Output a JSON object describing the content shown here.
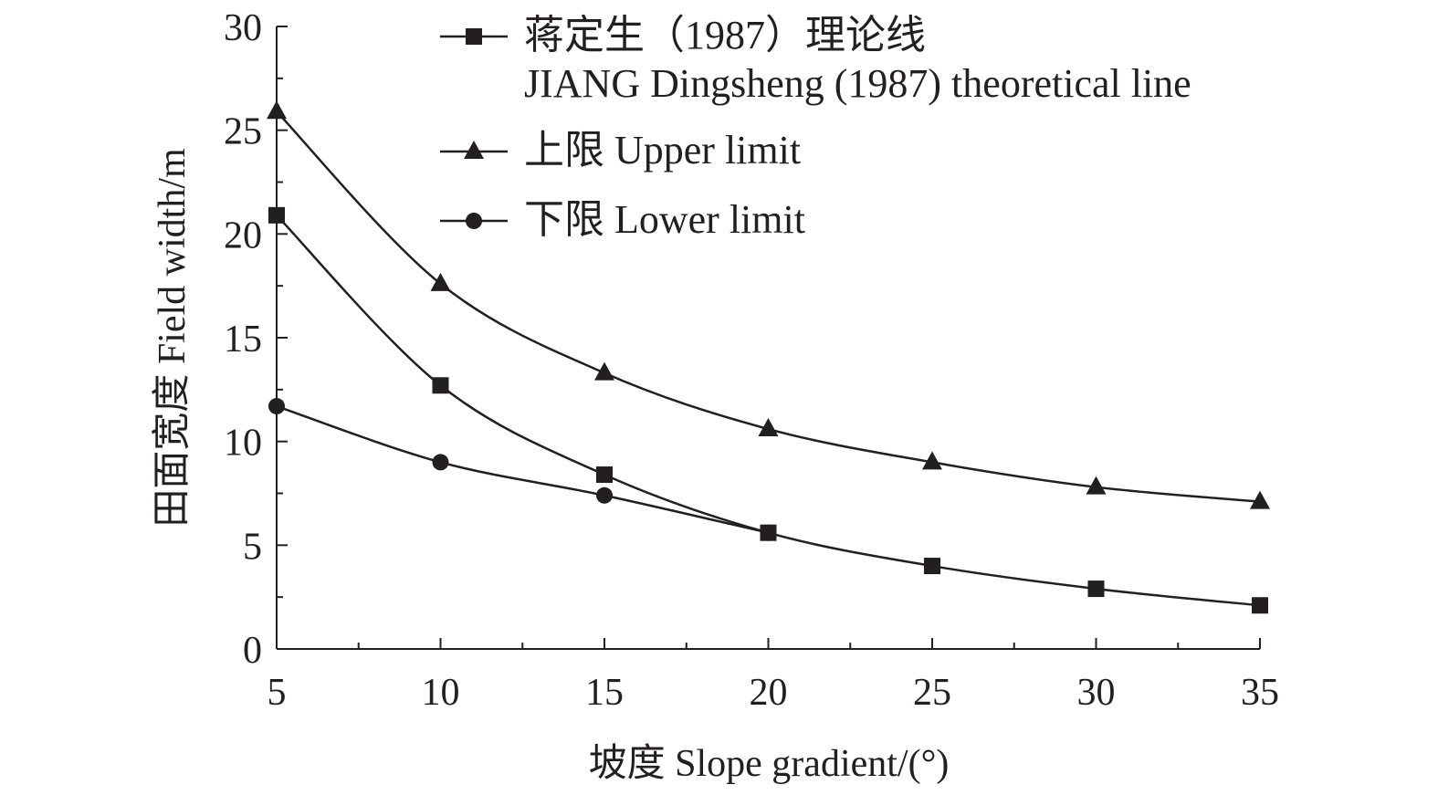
{
  "chart_data": {
    "type": "line",
    "xlabel": "坡度 Slope gradient/(°)",
    "ylabel": "田面宽度 Field width/m",
    "xlim": [
      5,
      35
    ],
    "ylim": [
      0,
      30
    ],
    "x_ticks": [
      "5",
      "10",
      "15",
      "20",
      "25",
      "30",
      "35"
    ],
    "y_ticks": [
      "0",
      "5",
      "10",
      "15",
      "20",
      "25",
      "30"
    ],
    "grid": false,
    "legend_position": "top-right",
    "x": [
      5,
      10,
      15,
      20,
      25,
      30,
      35
    ],
    "series": [
      {
        "name": "蒋定生（1987）理论线",
        "name_en": "JIANG Dingsheng (1987) theoretical line",
        "marker": "square",
        "values": [
          20.9,
          12.7,
          8.4,
          5.6,
          4.0,
          2.9,
          2.1
        ],
        "x": [
          5,
          10,
          15,
          20,
          25,
          30,
          35
        ]
      },
      {
        "name": "上限 Upper limit",
        "marker": "triangle",
        "values": [
          25.9,
          17.6,
          13.3,
          10.6,
          9.0,
          7.8,
          7.1
        ],
        "x": [
          5,
          10,
          15,
          20,
          25,
          30,
          35
        ]
      },
      {
        "name": "下限 Lower limit",
        "marker": "circle",
        "values": [
          11.7,
          9.0,
          7.4,
          5.6
        ],
        "x": [
          5,
          10,
          15,
          20
        ]
      }
    ],
    "colors": {
      "ink": "#231f20",
      "background": "#ffffff"
    }
  }
}
